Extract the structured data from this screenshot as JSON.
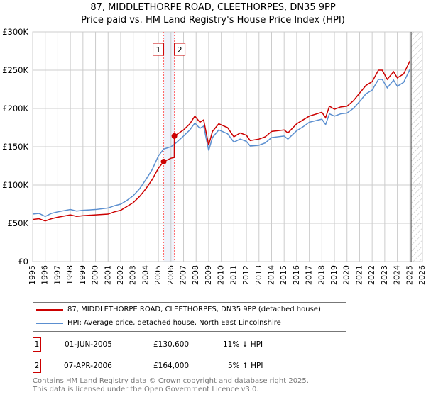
{
  "title": "87, MIDDLETHORPE ROAD, CLEETHORPES, DN35 9PP",
  "subtitle": "Price paid vs. HM Land Registry's House Price Index (HPI)",
  "chart_data": {
    "type": "line",
    "xlim": [
      1995,
      2026
    ],
    "ylim": [
      0,
      300000
    ],
    "yticks": [
      0,
      50000,
      100000,
      150000,
      200000,
      250000,
      300000
    ],
    "ytick_labels": [
      "£0",
      "£50K",
      "£100K",
      "£150K",
      "£200K",
      "£250K",
      "£300K"
    ],
    "xticks": [
      1995,
      1996,
      1997,
      1998,
      1999,
      2000,
      2001,
      2002,
      2003,
      2004,
      2005,
      2006,
      2007,
      2008,
      2009,
      2010,
      2011,
      2012,
      2013,
      2014,
      2015,
      2016,
      2017,
      2018,
      2019,
      2020,
      2021,
      2022,
      2023,
      2024,
      2025,
      2026
    ],
    "grid": true,
    "series": [
      {
        "name": "87, MIDDLETHORPE ROAD, CLEETHORPES, DN35 9PP (detached house)",
        "color": "#cc0000",
        "x": [
          1995,
          1995.5,
          1996,
          1996.5,
          1997,
          1998,
          1998.5,
          1999,
          2000,
          2001,
          2001.5,
          2002,
          2002.5,
          2003,
          2003.5,
          2004,
          2004.5,
          2005,
          2005.42,
          2006,
          2006.26,
          2006.27,
          2007,
          2007.5,
          2007.9,
          2008.3,
          2008.6,
          2009,
          2009.3,
          2009.8,
          2010.5,
          2011,
          2011.5,
          2012,
          2012.3,
          2013,
          2013.5,
          2014,
          2015,
          2015.3,
          2016,
          2016.5,
          2017,
          2018,
          2018.3,
          2018.6,
          2019,
          2019.5,
          2020,
          2020.5,
          2021,
          2021.5,
          2022,
          2022.5,
          2022.8,
          2023.2,
          2023.7,
          2024,
          2024.5,
          2025
        ],
        "y": [
          55000,
          56000,
          53000,
          56000,
          58000,
          61000,
          59000,
          60000,
          61000,
          62000,
          65000,
          67000,
          72000,
          77000,
          85000,
          95000,
          107000,
          122000,
          130600,
          135000,
          136000,
          164000,
          172000,
          180000,
          190000,
          182000,
          185000,
          152000,
          170000,
          180000,
          175000,
          163000,
          168000,
          165000,
          158000,
          160000,
          163000,
          170000,
          172000,
          168000,
          180000,
          185000,
          190000,
          195000,
          188000,
          203000,
          199000,
          202000,
          203000,
          210000,
          220000,
          230000,
          235000,
          250000,
          250000,
          238000,
          248000,
          240000,
          245000,
          262000
        ]
      },
      {
        "name": "HPI: Average price, detached house, North East Lincolnshire",
        "color": "#5b8fd0",
        "x": [
          1995,
          1995.5,
          1996,
          1996.5,
          1997,
          1998,
          1998.5,
          1999,
          2000,
          2001,
          2001.5,
          2002,
          2002.5,
          2003,
          2003.5,
          2004,
          2004.5,
          2005,
          2005.42,
          2006,
          2006.26,
          2007,
          2007.5,
          2007.9,
          2008.3,
          2008.6,
          2009,
          2009.3,
          2009.8,
          2010.5,
          2011,
          2011.5,
          2012,
          2012.3,
          2013,
          2013.5,
          2014,
          2015,
          2015.3,
          2016,
          2016.5,
          2017,
          2018,
          2018.3,
          2018.6,
          2019,
          2019.5,
          2020,
          2020.5,
          2021,
          2021.5,
          2022,
          2022.5,
          2022.8,
          2023.2,
          2023.7,
          2024,
          2024.5,
          2025
        ],
        "y": [
          62000,
          63000,
          59000,
          63000,
          65000,
          68000,
          66000,
          67000,
          68000,
          70000,
          73000,
          75000,
          80000,
          86000,
          95000,
          107000,
          120000,
          138000,
          147000,
          150000,
          153000,
          164000,
          172000,
          181000,
          174000,
          177000,
          145000,
          162000,
          172000,
          167000,
          156000,
          160000,
          157000,
          151000,
          152000,
          155000,
          162000,
          164000,
          160000,
          171000,
          176000,
          182000,
          186000,
          179000,
          193000,
          190000,
          193000,
          194000,
          200000,
          209000,
          219000,
          224000,
          238000,
          238000,
          227000,
          237000,
          229000,
          234000,
          251000
        ]
      }
    ],
    "sales": [
      {
        "label": "1",
        "x": 2005.42,
        "y": 130600
      },
      {
        "label": "2",
        "x": 2006.27,
        "y": 164000
      }
    ]
  },
  "legend": {
    "red": "87, MIDDLETHORPE ROAD, CLEETHORPES, DN35 9PP (detached house)",
    "blue": "HPI: Average price, detached house, North East Lincolnshire"
  },
  "transactions": [
    {
      "num": "1",
      "date": "01-JUN-2005",
      "price": "£130,600",
      "hpi": "11% ↓ HPI"
    },
    {
      "num": "2",
      "date": "07-APR-2006",
      "price": "£164,000",
      "hpi": "5% ↑ HPI"
    }
  ],
  "footer": {
    "line1": "Contains HM Land Registry data © Crown copyright and database right 2025.",
    "line2": "This data is licensed under the Open Government Licence v3.0."
  }
}
